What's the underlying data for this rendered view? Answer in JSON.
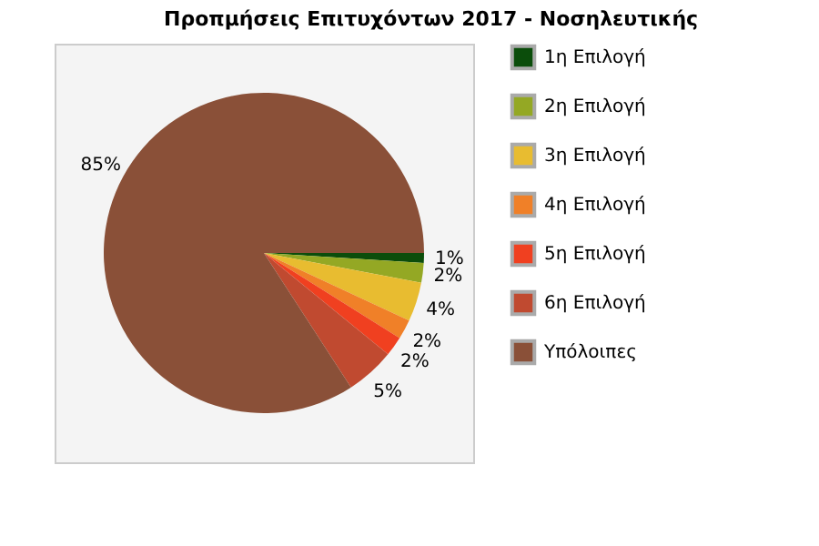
{
  "chart_data": {
    "type": "pie",
    "title": "Προπμήσεις Επιτυχόντων 2017 - Νοσηλευτικής",
    "categories": [
      "1η Επιλογή",
      "2η Επιλογή",
      "3η Επιλογή",
      "4η Επιλογή",
      "5η Επιλογή",
      "6η Επιλογή",
      "Υπόλοιπες"
    ],
    "values": [
      1,
      2,
      4,
      2,
      2,
      5,
      85
    ],
    "colors": [
      "#0b4d0b",
      "#94a824",
      "#e8bc30",
      "#f08028",
      "#f04020",
      "#c04a30",
      "#8a5038"
    ],
    "value_labels": [
      "1%",
      "2%",
      "4%",
      "2%",
      "2%",
      "5%",
      "85%"
    ],
    "legend": "right"
  }
}
